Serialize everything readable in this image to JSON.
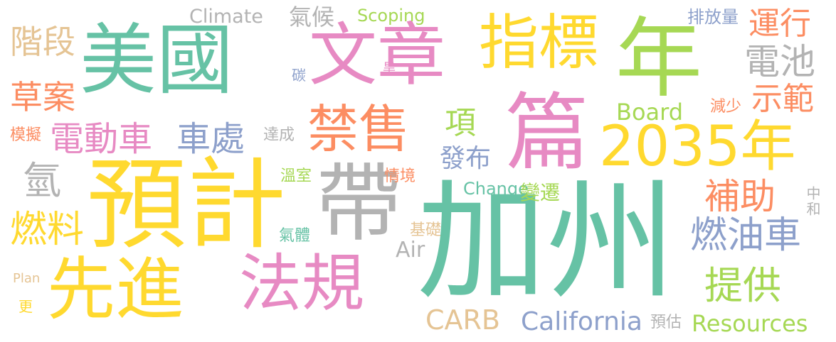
{
  "palette": {
    "green": "#66c2a5",
    "orange": "#fc8d62",
    "blue": "#8da0cb",
    "pink": "#e78ac3",
    "lime": "#a6d854",
    "yellow": "#ffd92f",
    "tan": "#e5c494",
    "gray": "#b3b3b3"
  },
  "words": [
    {
      "text": "美國",
      "color": "green"
    },
    {
      "text": "文章",
      "color": "pink"
    },
    {
      "text": "指標",
      "color": "yellow"
    },
    {
      "text": "年",
      "color": "lime"
    },
    {
      "text": "加州",
      "color": "green"
    },
    {
      "text": "預計",
      "color": "yellow"
    },
    {
      "text": "篇",
      "color": "pink"
    },
    {
      "text": "帶",
      "color": "gray"
    },
    {
      "text": "禁售",
      "color": "orange"
    },
    {
      "text": "先進",
      "color": "yellow"
    },
    {
      "text": "法規",
      "color": "pink"
    },
    {
      "text": "2035年",
      "color": "yellow"
    },
    {
      "text": "電動車",
      "color": "pink"
    },
    {
      "text": "車處",
      "color": "blue"
    },
    {
      "text": "燃油車",
      "color": "blue"
    },
    {
      "text": "提供",
      "color": "lime"
    },
    {
      "text": "補助",
      "color": "orange"
    },
    {
      "text": "運行",
      "color": "orange"
    },
    {
      "text": "電池",
      "color": "gray"
    },
    {
      "text": "示範",
      "color": "orange"
    },
    {
      "text": "草案",
      "color": "orange"
    },
    {
      "text": "階段",
      "color": "tan"
    },
    {
      "text": "燃料",
      "color": "yellow"
    },
    {
      "text": "氫",
      "color": "gray"
    },
    {
      "text": "項",
      "color": "lime"
    },
    {
      "text": "發布",
      "color": "blue"
    },
    {
      "text": "Board",
      "color": "lime"
    },
    {
      "text": "Climate",
      "color": "gray"
    },
    {
      "text": "氣候",
      "color": "gray"
    },
    {
      "text": "Scoping",
      "color": "lime"
    },
    {
      "text": "排放量",
      "color": "blue"
    },
    {
      "text": "California",
      "color": "blue"
    },
    {
      "text": "Resources",
      "color": "lime"
    },
    {
      "text": "CARB",
      "color": "tan"
    },
    {
      "text": "Air",
      "color": "gray"
    },
    {
      "text": "Change",
      "color": "green"
    },
    {
      "text": "變遷",
      "color": "lime"
    },
    {
      "text": "減少",
      "color": "orange"
    },
    {
      "text": "模擬",
      "color": "orange"
    },
    {
      "text": "達成",
      "color": "gray"
    },
    {
      "text": "溫室",
      "color": "lime"
    },
    {
      "text": "氣體",
      "color": "green"
    },
    {
      "text": "情境",
      "color": "orange"
    },
    {
      "text": "基礎",
      "color": "tan"
    },
    {
      "text": "碳",
      "color": "blue"
    },
    {
      "text": "旱",
      "color": "pink"
    },
    {
      "text": "中和",
      "color": "gray"
    },
    {
      "text": "預估",
      "color": "gray"
    },
    {
      "text": "Plan",
      "color": "tan"
    },
    {
      "text": "更",
      "color": "yellow"
    }
  ]
}
